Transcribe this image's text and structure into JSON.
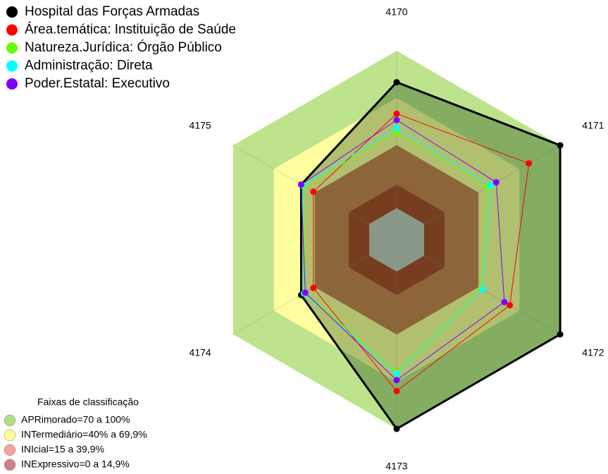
{
  "chart_data": {
    "type": "radar",
    "categories": [
      "4170",
      "4171",
      "4172",
      "4173",
      "4174",
      "4175"
    ],
    "rlim": [
      0,
      100
    ],
    "series": [
      {
        "name": "Hospital das Forças Armadas",
        "color": "#000000",
        "values": [
          80,
          100,
          100,
          100,
          50,
          50
        ]
      },
      {
        "name": "Área.temática: Instituição de Saúde",
        "color": "#ff0000",
        "values": [
          60,
          77,
          63,
          76,
          41,
          41
        ]
      },
      {
        "name": "Natureza.Jurídica: Órgão Público",
        "color": "#66ff00",
        "values": [
          48,
          47,
          42,
          64,
          47,
          48
        ]
      },
      {
        "name": "Administração: Direta",
        "color": "#00ffff",
        "values": [
          51,
          49,
          43,
          65,
          48,
          49
        ]
      },
      {
        "name": "Poder.Estatal: Executivo",
        "color": "#8000ff",
        "values": [
          56,
          53,
          59,
          69,
          47,
          50
        ]
      }
    ],
    "bands_title": "Faixas de classificação",
    "bands": [
      {
        "label": "APRimorado=70 a 100%",
        "from": 70,
        "to": 100,
        "color": "#bde38d",
        "legend_color": "#b3dd85"
      },
      {
        "label": "INTermediário=40% a 69,9%",
        "from": 40,
        "to": 70,
        "color": "#fefe9e",
        "legend_color": "#ffff99"
      },
      {
        "label": "INIcial=15 a 39,9%",
        "from": 15,
        "to": 40,
        "color": "#c97d52",
        "legend_color": "#f4a0a0"
      },
      {
        "label": "INExpressivo=0 a 14,9%",
        "from": 0,
        "to": 15,
        "color": "#a9432d",
        "legend_color": "#d08080"
      }
    ]
  }
}
